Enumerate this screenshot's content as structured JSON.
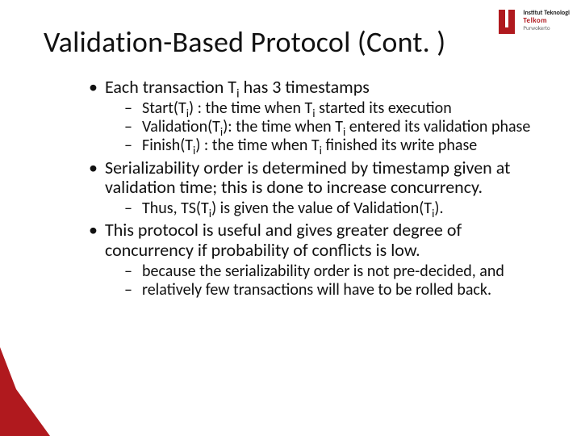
{
  "title": "Validation-Based Protocol (Cont. )",
  "logo": {
    "line1": "Institut Teknologi",
    "line2": "Telkom",
    "line3": "Purwokerto"
  },
  "bullets": [
    {
      "html": "Each transaction T<span class=\"sub\">i</span> has 3 timestamps",
      "children": [
        {
          "html": "Start(T<span class=\"sub\">i</span>) : the time when T<span class=\"sub\">i</span> started its execution"
        },
        {
          "html": "Validation(T<span class=\"sub\">i</span>): the time when T<span class=\"sub\">i</span> entered its validation phase"
        },
        {
          "html": "Finish(T<span class=\"sub\">i</span>) : the time when T<span class=\"sub\">i</span> finished its write phase"
        }
      ]
    },
    {
      "html": "Serializability order is determined by timestamp given at validation time; this is done to increase concurrency.",
      "children": [
        {
          "html": "Thus, TS(T<span class=\"sub\">i</span>) is given the value of Validation(T<span class=\"sub\">i</span>)."
        }
      ]
    },
    {
      "html": "This protocol is useful and gives greater degree of concurrency if probability of conflicts is low.",
      "children": [
        {
          "html": "because the serializability order is not pre-decided, and"
        },
        {
          "html": "relatively few transactions will have to be rolled back."
        }
      ]
    }
  ],
  "colors": {
    "brand_red": "#b0191e",
    "text": "#111111",
    "background": "#ffffff"
  }
}
